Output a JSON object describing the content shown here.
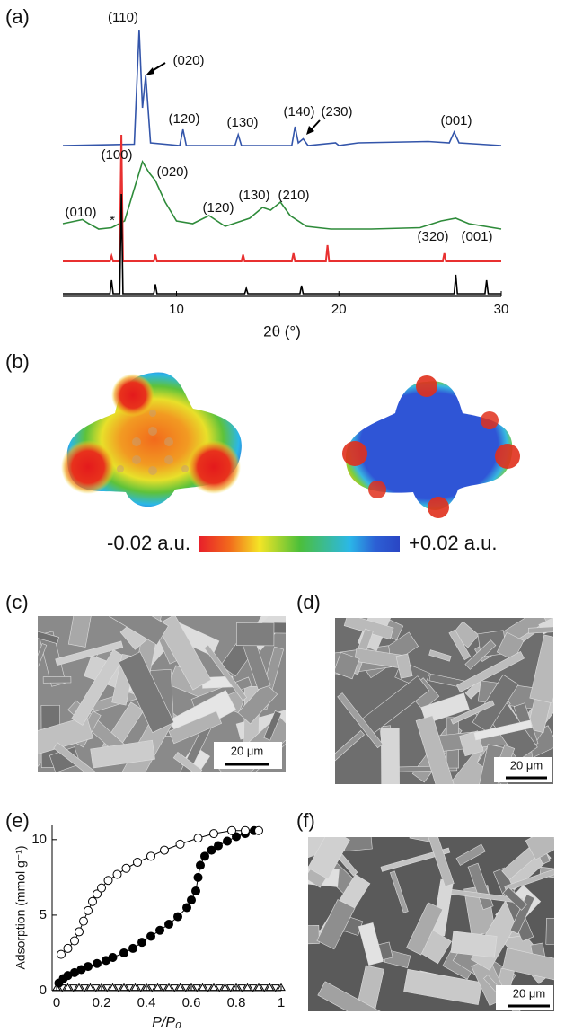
{
  "panel_labels": [
    "(a)",
    "(b)",
    "(c)",
    "(d)",
    "(e)",
    "(f)"
  ],
  "chart_data": [
    {
      "type": "line",
      "x_label": "2θ (°)",
      "xlim": [
        3,
        30
      ],
      "xticks": [
        10,
        20,
        30
      ],
      "ylim": [
        0,
        100
      ],
      "annotations": [
        "(110)",
        "(020)",
        "(120)",
        "(130)",
        "(140)",
        "(230)",
        "(001)",
        "(100)",
        "(020)",
        "(010)",
        "(120)",
        "(130)",
        "(210)",
        "(320)",
        "(001)",
        "*"
      ],
      "series": [
        {
          "color": "#3355aa",
          "x": [
            3,
            7.4,
            7.7,
            7.9,
            8.1,
            8.4,
            10.2,
            10.4,
            10.6,
            13.6,
            13.8,
            14.0,
            17.1,
            17.3,
            17.5,
            17.8,
            18.1,
            19.8,
            20,
            21.2,
            25.5,
            26.8,
            27.1,
            27.4,
            30
          ],
          "values": [
            56,
            56.5,
            99,
            70,
            82,
            57,
            56,
            62,
            56,
            56,
            60,
            56,
            56,
            63,
            57,
            58.5,
            56,
            57,
            56,
            57,
            57.5,
            57,
            61,
            57,
            56
          ]
        },
        {
          "color": "#2e8b3a",
          "x": [
            3,
            3.8,
            4.2,
            4.6,
            5.2,
            6,
            6.8,
            7.3,
            7.9,
            8.3,
            8.7,
            9.3,
            10,
            11,
            12,
            13,
            14.5,
            15.3,
            15.8,
            16.4,
            17,
            18,
            19.5,
            22,
            25,
            26.3,
            27.2,
            28,
            30
          ],
          "values": [
            27,
            28,
            28.5,
            27,
            25,
            25.5,
            28,
            38,
            50,
            46,
            43,
            35,
            28,
            27,
            30,
            26,
            29,
            33,
            32,
            35,
            30,
            26,
            25,
            25,
            25.5,
            28,
            29,
            27,
            25
          ]
        },
        {
          "color": "#e83030",
          "x": [
            3,
            5.9,
            6.0,
            6.1,
            6.5,
            6.6,
            6.7,
            8.6,
            8.7,
            8.8,
            14.0,
            14.1,
            14.2,
            17.1,
            17.2,
            17.3,
            19.2,
            19.3,
            19.4,
            26.4,
            26.5,
            26.6,
            30
          ],
          "values": [
            13,
            13,
            15,
            13,
            13,
            60,
            13,
            13,
            15.5,
            13,
            13,
            15.5,
            13,
            13,
            16,
            13,
            13,
            19,
            13,
            13,
            16,
            13,
            13
          ]
        },
        {
          "color": "#000000",
          "x": [
            3,
            5.9,
            6.0,
            6.1,
            6.5,
            6.6,
            6.7,
            8.6,
            8.7,
            8.8,
            14.2,
            14.3,
            14.4,
            17.6,
            17.7,
            17.8,
            27.1,
            27.2,
            27.3,
            29.0,
            29.1,
            29.2,
            30
          ],
          "values": [
            1,
            1,
            6,
            1,
            1,
            38,
            1,
            1,
            4.5,
            1,
            1,
            3,
            1,
            1,
            4,
            1,
            1,
            8,
            1,
            1,
            6,
            1,
            1
          ]
        }
      ]
    },
    {
      "type": "scatter",
      "x_label": "P/P₀",
      "y_label": "Adsorption (mmol g⁻¹)",
      "xlim": [
        -0.02,
        1.0
      ],
      "xticks": [
        0,
        0.2,
        0.4,
        0.6,
        0.8,
        1
      ],
      "ylim": [
        0,
        11
      ],
      "yticks": [
        0,
        5,
        10
      ],
      "series": [
        {
          "color": "#000000",
          "marker": "filled-circle",
          "connect": true,
          "x": [
            0.01,
            0.03,
            0.05,
            0.08,
            0.11,
            0.14,
            0.18,
            0.22,
            0.25,
            0.3,
            0.34,
            0.38,
            0.42,
            0.46,
            0.5,
            0.54,
            0.58,
            0.6,
            0.62,
            0.63,
            0.64,
            0.66,
            0.69,
            0.72,
            0.76,
            0.8,
            0.84,
            0.88
          ],
          "values": [
            0.5,
            0.8,
            1.0,
            1.2,
            1.4,
            1.6,
            1.8,
            2.0,
            2.2,
            2.5,
            2.8,
            3.2,
            3.6,
            4.0,
            4.4,
            4.9,
            5.5,
            6.0,
            6.6,
            7.5,
            8.3,
            8.9,
            9.3,
            9.6,
            9.9,
            10.2,
            10.4,
            10.6
          ]
        },
        {
          "color": "#000000",
          "marker": "open-circle",
          "connect": true,
          "x": [
            0.02,
            0.05,
            0.08,
            0.1,
            0.12,
            0.14,
            0.16,
            0.18,
            0.2,
            0.23,
            0.27,
            0.31,
            0.36,
            0.42,
            0.48,
            0.55,
            0.63,
            0.7,
            0.78,
            0.84,
            0.9
          ],
          "values": [
            2.4,
            2.8,
            3.3,
            3.9,
            4.6,
            5.3,
            5.9,
            6.4,
            6.8,
            7.3,
            7.7,
            8.1,
            8.5,
            8.9,
            9.3,
            9.7,
            10.1,
            10.4,
            10.6,
            10.6,
            10.6
          ]
        },
        {
          "color": "#000000",
          "marker": "triangle-up",
          "connect": false,
          "x": [
            0,
            0.05,
            0.1,
            0.15,
            0.2,
            0.25,
            0.3,
            0.35,
            0.4,
            0.45,
            0.5,
            0.55,
            0.6,
            0.65,
            0.7,
            0.75,
            0.8,
            0.85,
            0.9,
            0.95,
            1
          ],
          "values": [
            0.2,
            0.2,
            0.2,
            0.2,
            0.2,
            0.2,
            0.2,
            0.2,
            0.2,
            0.2,
            0.2,
            0.2,
            0.2,
            0.2,
            0.2,
            0.2,
            0.2,
            0.2,
            0.2,
            0.2,
            0.2
          ]
        },
        {
          "color": "#000000",
          "marker": "triangle-down",
          "connect": false,
          "x": [
            0.025,
            0.075,
            0.125,
            0.175,
            0.225,
            0.275,
            0.325,
            0.375,
            0.425,
            0.475,
            0.525,
            0.575,
            0.625,
            0.675,
            0.725,
            0.775,
            0.825,
            0.875,
            0.925,
            0.975
          ],
          "values": [
            0.2,
            0.2,
            0.2,
            0.2,
            0.2,
            0.2,
            0.2,
            0.2,
            0.2,
            0.2,
            0.2,
            0.2,
            0.2,
            0.2,
            0.2,
            0.2,
            0.2,
            0.2,
            0.2,
            0.2
          ]
        }
      ]
    }
  ],
  "colorbar": {
    "min_label": "-0.02 a.u.",
    "max_label": "+0.02 a.u."
  },
  "scale_bars": [
    "20 μm",
    "20 μm",
    "20 μm"
  ]
}
